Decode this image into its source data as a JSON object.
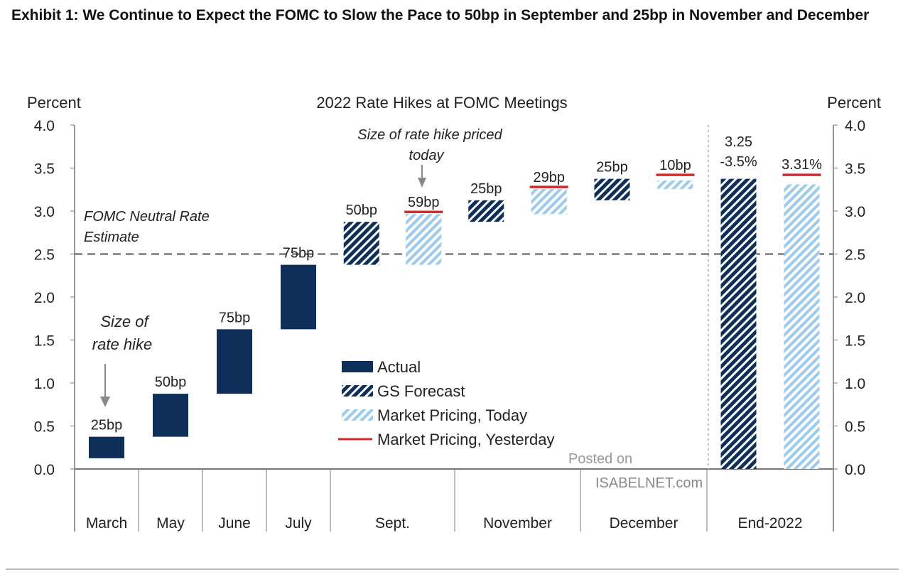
{
  "exhibit_title": "Exhibit 1: We Continue to Expect the FOMC to Slow the Pace to 50bp in September and 25bp in November and December",
  "watermark": "Posted on ISABELNET.com",
  "chart_data": {
    "type": "bar",
    "subtype": "floating waterfall",
    "title": "2022 Rate Hikes at FOMC Meetings",
    "ylabel_left": "Percent",
    "ylabel_right": "Percent",
    "ylim": [
      0,
      4.0
    ],
    "yticks": [
      "0.0",
      "0.5",
      "1.0",
      "1.5",
      "2.0",
      "2.5",
      "3.0",
      "3.5",
      "4.0"
    ],
    "categories": [
      "March",
      "May",
      "June",
      "July",
      "Sept.",
      "November",
      "December",
      "End-2022"
    ],
    "colors": {
      "actual": "#0d2f5a",
      "gs_forecast": "#0d2f5a",
      "market_today": "#9ccbee",
      "market_yesterday": "#d42a2a"
    },
    "legend": {
      "position": "center",
      "items": [
        "Actual",
        "GS Forecast",
        "Market Pricing, Today",
        "Market Pricing, Yesterday"
      ]
    },
    "series": [
      {
        "name": "Actual",
        "style": "solid",
        "bars": [
          {
            "category": "March",
            "low": 0.125,
            "high": 0.375,
            "label": "25bp"
          },
          {
            "category": "May",
            "low": 0.375,
            "high": 0.875,
            "label": "50bp"
          },
          {
            "category": "June",
            "low": 0.875,
            "high": 1.625,
            "label": "75bp"
          },
          {
            "category": "July",
            "low": 1.625,
            "high": 2.375,
            "label": "75bp"
          }
        ]
      },
      {
        "name": "GS Forecast",
        "style": "hatched",
        "bars": [
          {
            "category": "Sept.",
            "low": 2.375,
            "high": 2.875,
            "label": "50bp"
          },
          {
            "category": "November",
            "low": 2.875,
            "high": 3.125,
            "label": "25bp"
          },
          {
            "category": "December",
            "low": 3.125,
            "high": 3.375,
            "label": "25bp"
          },
          {
            "category": "End-2022",
            "low": 0,
            "high": 3.375,
            "label": "3.25\n-3.5%"
          }
        ]
      },
      {
        "name": "Market Pricing, Today",
        "style": "light-hatched",
        "bars": [
          {
            "category": "Sept.",
            "low": 2.375,
            "high": 2.965,
            "label": "59bp"
          },
          {
            "category": "November",
            "low": 2.965,
            "high": 3.255,
            "label": "29bp"
          },
          {
            "category": "December",
            "low": 3.255,
            "high": 3.355,
            "label": "10bp"
          },
          {
            "category": "End-2022",
            "low": 0,
            "high": 3.31,
            "label": "3.31%"
          }
        ]
      },
      {
        "name": "Market Pricing, Yesterday",
        "style": "line",
        "values": [
          {
            "category": "Sept.",
            "value": 2.99
          },
          {
            "category": "November",
            "value": 3.28
          },
          {
            "category": "December",
            "value": 3.42
          },
          {
            "category": "End-2022",
            "value": 3.42
          }
        ]
      }
    ],
    "reference_line": {
      "value": 2.5,
      "label": "FOMC Neutral Rate Estimate"
    },
    "annotations": [
      "Size of rate hike",
      "Size of rate hike priced today"
    ]
  }
}
